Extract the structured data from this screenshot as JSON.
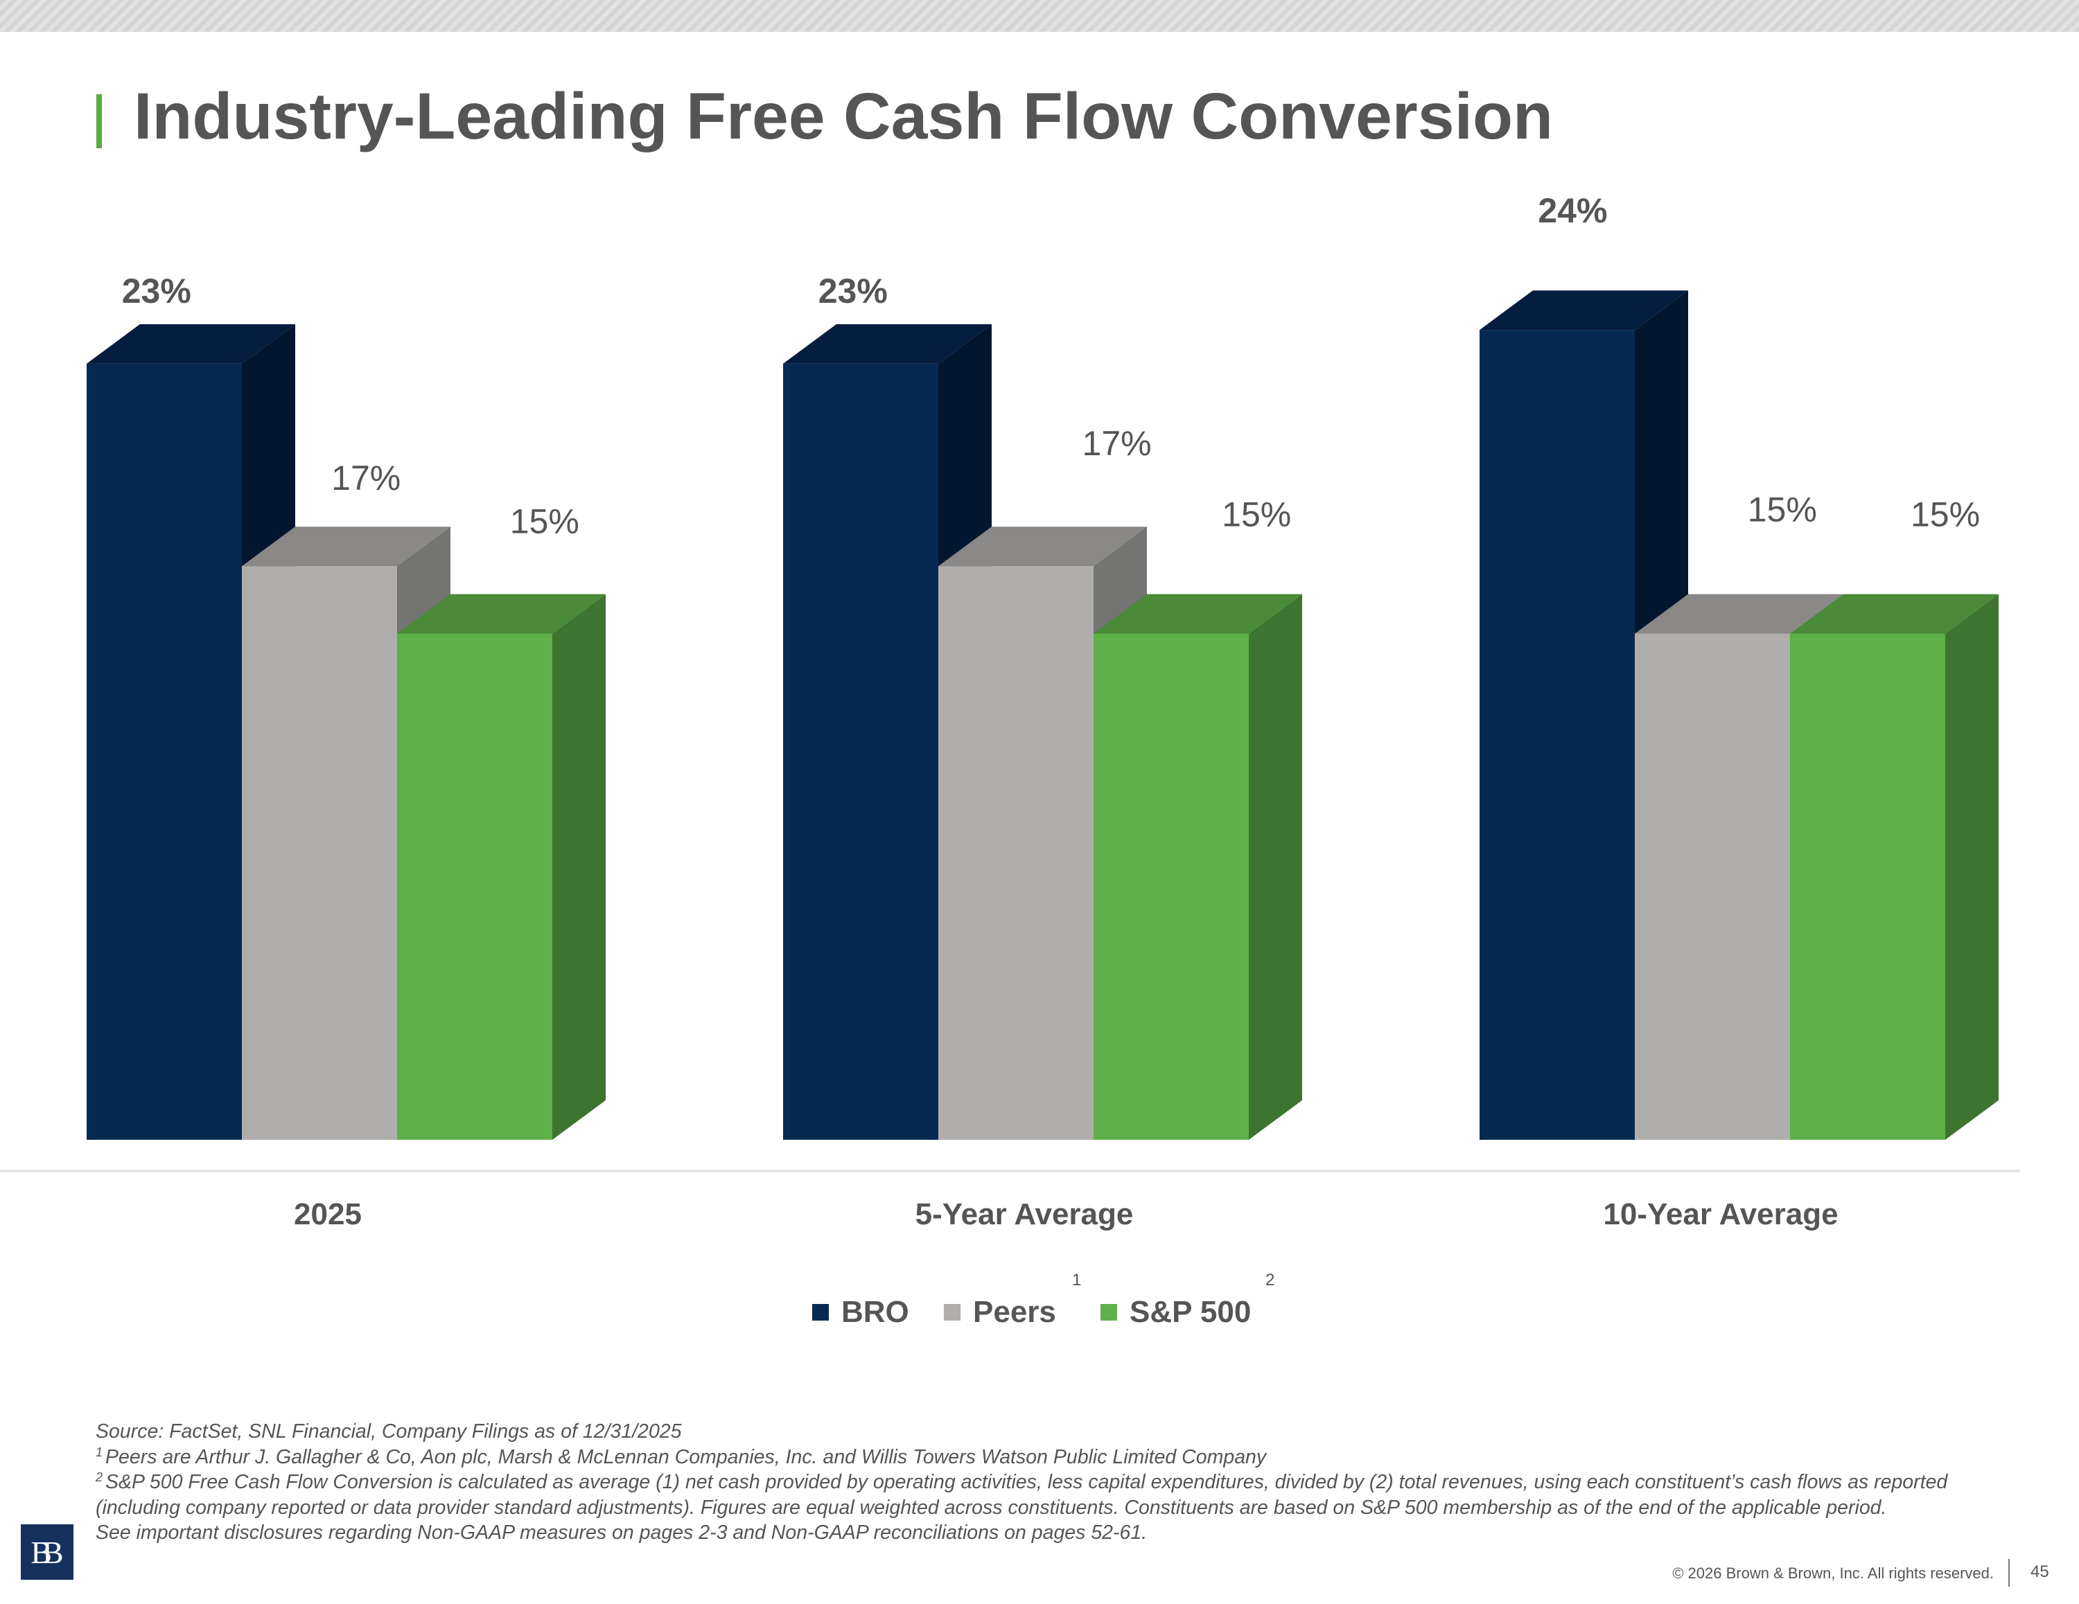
{
  "slide": {
    "title": "Industry-Leading Free Cash Flow Conversion",
    "page_number": "45",
    "copyright": "© 2026 Brown & Brown, Inc. All rights reserved.",
    "logo_text": "BB"
  },
  "legend": {
    "items": [
      {
        "label": "BRO",
        "color": "#062952",
        "superscript": ""
      },
      {
        "label": "Peers",
        "color": "#b0aeac",
        "superscript": "1"
      },
      {
        "label": "S&P 500",
        "color": "#5fb048",
        "superscript": "2"
      }
    ]
  },
  "footnotes": {
    "source": "Source: FactSet, SNL Financial, Company Filings as of 12/31/2025",
    "note1_marker": "1",
    "note1": "Peers are Arthur J. Gallagher & Co, Aon plc, Marsh & McLennan Companies, Inc. and Willis Towers Watson Public Limited Company",
    "note2_marker": "2",
    "note2": "S&P 500 Free Cash Flow Conversion is calculated as average (1) net cash provided by operating activities, less capital expenditures, divided by (2) total revenues, using each constituent’s cash flows as reported (including company reported or data provider standard adjustments). Figures are equal weighted across constituents. Constituents are based on S&P 500 membership as of the end of the applicable period.",
    "disclosure": "See important disclosures regarding Non-GAAP measures on pages 2-3 and Non-GAAP reconciliations on pages 52-61."
  },
  "chart_data": {
    "type": "bar",
    "title": "Industry-Leading Free Cash Flow Conversion",
    "categories": [
      "2025",
      "5-Year Average",
      "10-Year Average"
    ],
    "series": [
      {
        "name": "BRO",
        "values": [
          23,
          23,
          24
        ],
        "labels": [
          "23%",
          "23%",
          "24%"
        ],
        "color": "#062952",
        "top_color": "#041c3d",
        "side_color": "#021630",
        "bold": true
      },
      {
        "name": "Peers",
        "values": [
          17,
          17,
          15
        ],
        "labels": [
          "17%",
          "17%",
          "15%"
        ],
        "color": "#b0aeac",
        "top_color": "#8a8988",
        "side_color": "#747472",
        "bold": false
      },
      {
        "name": "S&P 500",
        "values": [
          15,
          15,
          15
        ],
        "labels": [
          "15%",
          "15%",
          "15%"
        ],
        "color": "#5fb048",
        "top_color": "#4a8a38",
        "side_color": "#3d7530",
        "bold": false
      }
    ],
    "ylim": [
      0,
      30
    ],
    "units": "%",
    "xlabel": "",
    "ylabel": "",
    "grid": false,
    "legend_position": "bottom"
  }
}
